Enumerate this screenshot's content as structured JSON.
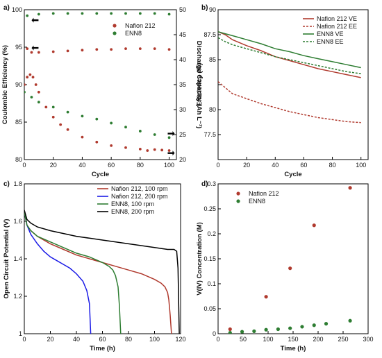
{
  "chart_data": [
    {
      "panel": "a)",
      "type": "scatter",
      "xlabel": "Cycle",
      "ylabel": "Coulombic Efficiency (%)",
      "y2label": "Discharge Capacity (Ah L⁻¹)",
      "xlim": [
        0,
        105
      ],
      "ylim": [
        80,
        100
      ],
      "y2lim": [
        20,
        50
      ],
      "xticks": [
        0,
        20,
        40,
        60,
        80,
        100
      ],
      "yticks": [
        80,
        85,
        90,
        95,
        100
      ],
      "y2ticks": [
        20,
        25,
        30,
        35,
        40,
        45,
        50
      ],
      "grid": false,
      "legend_position": "upper-right",
      "series": [
        {
          "name": "Nafion 212",
          "axis": "left",
          "color": "#b03a2e",
          "x": [
            2,
            5,
            10,
            20,
            30,
            40,
            50,
            60,
            70,
            80,
            90,
            100
          ],
          "values": [
            94.8,
            94.3,
            94.3,
            94.4,
            94.5,
            94.6,
            94.7,
            94.7,
            94.8,
            94.8,
            94.8,
            94.7
          ]
        },
        {
          "name": "ENN8",
          "axis": "left",
          "color": "#2e7d32",
          "x": [
            2,
            10,
            20,
            30,
            40,
            50,
            60,
            70,
            80,
            90,
            100
          ],
          "values": [
            99.2,
            99.4,
            99.5,
            99.5,
            99.5,
            99.5,
            99.5,
            99.5,
            99.5,
            99.5,
            99.4
          ]
        },
        {
          "name": "Nafion 212",
          "axis": "right",
          "color": "#b03a2e",
          "x": [
            0,
            2,
            4,
            6,
            8,
            10,
            15,
            20,
            25,
            30,
            40,
            50,
            60,
            70,
            80,
            85,
            90,
            95,
            100
          ],
          "values": [
            35,
            36.5,
            37,
            36.5,
            35,
            33.5,
            30.5,
            28.5,
            27,
            26,
            24.5,
            23.5,
            22.8,
            22.4,
            22.1,
            21.8,
            22.0,
            21.9,
            21.8
          ]
        },
        {
          "name": "ENN8",
          "axis": "right",
          "color": "#2e7d32",
          "x": [
            0,
            5,
            10,
            20,
            30,
            40,
            50,
            60,
            70,
            80,
            90,
            100
          ],
          "values": [
            33.5,
            32.5,
            31.5,
            30.5,
            29.5,
            28.7,
            28.1,
            27.3,
            26.5,
            25.7,
            25.0,
            24.4
          ]
        }
      ]
    },
    {
      "panel": "b)",
      "type": "line",
      "xlabel": "Cycle",
      "ylabel": "Efficiency (%)",
      "xlim": [
        0,
        105
      ],
      "ylim": [
        75,
        90
      ],
      "xticks": [
        0,
        20,
        40,
        60,
        80,
        100
      ],
      "yticks": [
        77.5,
        80,
        82.5,
        85,
        87.5,
        90
      ],
      "ytick_labels": [
        "77.5",
        "80",
        "",
        "85",
        "87.5",
        "90"
      ],
      "grid": false,
      "legend_position": "upper-right",
      "series": [
        {
          "name": "Nafion 212 VE",
          "color": "#b03a2e",
          "dash": "solid",
          "x": [
            0,
            5,
            10,
            20,
            30,
            40,
            50,
            60,
            70,
            80,
            90,
            100
          ],
          "values": [
            87.8,
            87.5,
            87.0,
            86.4,
            85.9,
            85.3,
            84.9,
            84.5,
            84.1,
            83.8,
            83.5,
            83.2
          ]
        },
        {
          "name": "Nafion 212 EE",
          "color": "#b03a2e",
          "dash": "dashed",
          "x": [
            0,
            5,
            10,
            20,
            30,
            40,
            50,
            60,
            70,
            80,
            90,
            100
          ],
          "values": [
            82.8,
            82.2,
            81.6,
            81.1,
            80.6,
            80.2,
            79.8,
            79.5,
            79.2,
            79.0,
            78.8,
            78.7
          ]
        },
        {
          "name": "ENN8 VE",
          "color": "#2e7d32",
          "dash": "solid",
          "x": [
            0,
            5,
            10,
            20,
            30,
            40,
            50,
            60,
            70,
            80,
            90,
            100
          ],
          "values": [
            87.8,
            87.6,
            87.4,
            87.0,
            86.6,
            86.1,
            85.8,
            85.4,
            85.1,
            84.8,
            84.5,
            84.2
          ]
        },
        {
          "name": "ENN8 EE",
          "color": "#2e7d32",
          "dash": "dashed",
          "x": [
            0,
            5,
            10,
            20,
            30,
            40,
            50,
            60,
            70,
            80,
            90,
            100
          ],
          "values": [
            87.2,
            86.8,
            86.5,
            86.1,
            85.7,
            85.3,
            85.0,
            84.7,
            84.4,
            84.1,
            83.8,
            83.6
          ]
        }
      ]
    },
    {
      "panel": "c)",
      "type": "line",
      "xlabel": "Time (h)",
      "ylabel": "Open Circuit Potential (V)",
      "xlim": [
        0,
        120
      ],
      "ylim": [
        1.0,
        1.8
      ],
      "xticks": [
        0,
        20,
        40,
        60,
        80,
        100,
        120
      ],
      "yticks": [
        1.0,
        1.2,
        1.4,
        1.6,
        1.8
      ],
      "ytick_labels": [
        "1",
        "1.2",
        "1.4",
        "1.6",
        "1.8"
      ],
      "grid": false,
      "legend_position": "upper-right",
      "series": [
        {
          "name": "Nafion 212, 100 rpm",
          "color": "#b03a2e",
          "x": [
            0,
            2,
            5,
            10,
            20,
            30,
            40,
            50,
            60,
            70,
            80,
            90,
            100,
            105,
            108,
            110,
            111,
            112,
            113
          ],
          "values": [
            1.65,
            1.58,
            1.55,
            1.52,
            1.48,
            1.45,
            1.42,
            1.4,
            1.38,
            1.36,
            1.34,
            1.32,
            1.29,
            1.27,
            1.25,
            1.22,
            1.18,
            1.1,
            1.0
          ]
        },
        {
          "name": "Nafion 212, 200 rpm",
          "color": "#1a1ae6",
          "x": [
            0,
            2,
            5,
            10,
            15,
            20,
            25,
            30,
            35,
            40,
            45,
            48,
            50,
            51
          ],
          "values": [
            1.65,
            1.58,
            1.53,
            1.48,
            1.44,
            1.41,
            1.39,
            1.37,
            1.35,
            1.32,
            1.28,
            1.23,
            1.16,
            1.0
          ]
        },
        {
          "name": "ENN8, 100 rpm",
          "color": "#2e7d32",
          "x": [
            0,
            2,
            5,
            10,
            20,
            30,
            40,
            50,
            60,
            65,
            68,
            70,
            72,
            73,
            74
          ],
          "values": [
            1.65,
            1.58,
            1.55,
            1.52,
            1.49,
            1.46,
            1.43,
            1.41,
            1.38,
            1.36,
            1.34,
            1.31,
            1.25,
            1.15,
            1.0
          ]
        },
        {
          "name": "ENN8, 200 rpm",
          "color": "#000000",
          "x": [
            0,
            2,
            5,
            10,
            20,
            40,
            60,
            80,
            100,
            110,
            115,
            117,
            118,
            119
          ],
          "values": [
            1.66,
            1.61,
            1.59,
            1.57,
            1.55,
            1.52,
            1.5,
            1.48,
            1.46,
            1.45,
            1.45,
            1.44,
            1.35,
            1.0
          ]
        }
      ]
    },
    {
      "panel": "d)",
      "type": "scatter",
      "xlabel": "Time (h)",
      "ylabel": "V(IV) Concentration (M)",
      "xlim": [
        0,
        300
      ],
      "ylim": [
        0,
        0.3
      ],
      "xticks": [
        0,
        50,
        100,
        150,
        200,
        250,
        300
      ],
      "yticks": [
        0,
        0.05,
        0.1,
        0.15,
        0.2,
        0.25,
        0.3
      ],
      "grid": false,
      "legend_position": "upper-left",
      "series": [
        {
          "name": "Nafion 212",
          "color": "#b03a2e",
          "x": [
            24,
            96,
            144,
            192,
            264
          ],
          "values": [
            0.009,
            0.074,
            0.131,
            0.217,
            0.292
          ]
        },
        {
          "name": "ENN8",
          "color": "#2e7d32",
          "x": [
            24,
            48,
            72,
            96,
            120,
            144,
            168,
            192,
            216,
            264
          ],
          "values": [
            0.002,
            0.004,
            0.005,
            0.008,
            0.009,
            0.011,
            0.014,
            0.017,
            0.02,
            0.026
          ]
        }
      ]
    }
  ]
}
